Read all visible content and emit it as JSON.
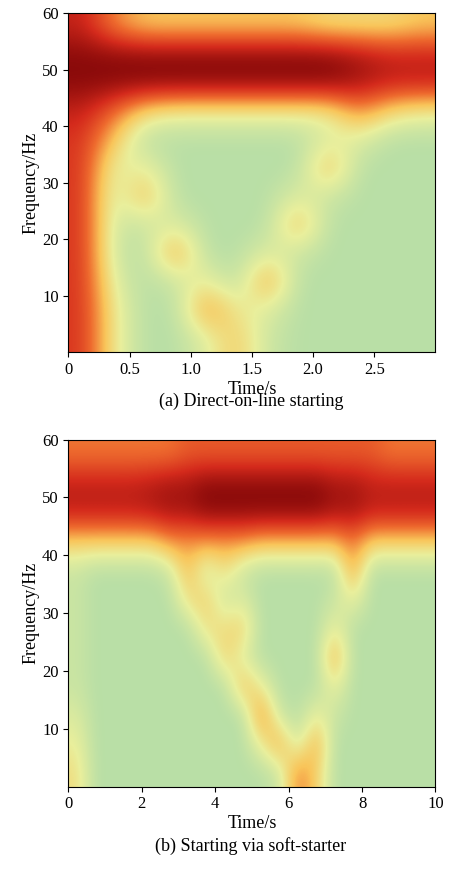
{
  "chart_data": [
    {
      "type": "heatmap",
      "title": "(a) Direct-on-line starting",
      "x_label": "Time/s",
      "y_label": "Frequency/Hz",
      "xlim": [
        0,
        3
      ],
      "ylim": [
        0,
        60
      ],
      "xticks": [
        0,
        0.5,
        {
          "value": 1.0,
          "label": "1.0"
        },
        1.5,
        {
          "value": 2.0,
          "label": "2.0"
        },
        2.5
      ],
      "yticks": [
        10,
        20,
        30,
        40,
        50,
        60
      ],
      "x": [
        0.125,
        0.375,
        0.625,
        0.875,
        1.125,
        1.375,
        1.625,
        1.875,
        2.125,
        2.375,
        2.625,
        2.875
      ],
      "y": [
        2.5,
        7.5,
        12.5,
        17.5,
        22.5,
        27.5,
        32.5,
        37.5,
        42.5,
        47.5,
        52.5,
        57.5
      ],
      "cells": [
        [
          0.85,
          0.5,
          0.35,
          0.35,
          0.45,
          0.6,
          0.4,
          0.35,
          0.35,
          0.35,
          0.35,
          0.35
        ],
        [
          0.85,
          0.5,
          0.35,
          0.35,
          0.7,
          0.5,
          0.45,
          0.35,
          0.35,
          0.35,
          0.35,
          0.35
        ],
        [
          0.85,
          0.45,
          0.35,
          0.4,
          0.5,
          0.35,
          0.7,
          0.35,
          0.35,
          0.35,
          0.35,
          0.35
        ],
        [
          0.85,
          0.4,
          0.35,
          0.7,
          0.35,
          0.35,
          0.45,
          0.4,
          0.35,
          0.35,
          0.35,
          0.35
        ],
        [
          0.85,
          0.4,
          0.4,
          0.45,
          0.35,
          0.35,
          0.35,
          0.65,
          0.35,
          0.35,
          0.35,
          0.35
        ],
        [
          0.85,
          0.4,
          0.65,
          0.35,
          0.35,
          0.35,
          0.35,
          0.45,
          0.4,
          0.35,
          0.35,
          0.35
        ],
        [
          0.85,
          0.45,
          0.5,
          0.35,
          0.35,
          0.35,
          0.35,
          0.35,
          0.65,
          0.35,
          0.35,
          0.35
        ],
        [
          0.85,
          0.6,
          0.35,
          0.35,
          0.35,
          0.35,
          0.35,
          0.35,
          0.45,
          0.45,
          0.35,
          0.35
        ],
        [
          0.9,
          0.75,
          0.55,
          0.5,
          0.5,
          0.5,
          0.5,
          0.5,
          0.5,
          0.7,
          0.55,
          0.5
        ],
        [
          1,
          1,
          1,
          1,
          1,
          1,
          1,
          1,
          1,
          0.95,
          0.9,
          0.9
        ],
        [
          1,
          1,
          1,
          1,
          1,
          1,
          1,
          1,
          1,
          0.95,
          0.9,
          0.9
        ],
        [
          0.9,
          0.7,
          0.6,
          0.6,
          0.6,
          0.6,
          0.6,
          0.6,
          0.55,
          0.55,
          0.55,
          0.6
        ]
      ]
    },
    {
      "type": "heatmap",
      "title": "(b) Starting via soft-starter",
      "x_label": "Time/s",
      "y_label": "Frequency/Hz",
      "xlim": [
        0,
        10
      ],
      "ylim": [
        0,
        60
      ],
      "xticks": [
        0,
        2,
        4,
        6,
        8,
        10
      ],
      "yticks": [
        10,
        20,
        30,
        40,
        50,
        60
      ],
      "x": [
        0.25,
        0.75,
        1.25,
        1.75,
        2.25,
        2.75,
        3.25,
        3.75,
        4.25,
        4.75,
        5.25,
        5.75,
        6.25,
        6.75,
        7.25,
        7.75,
        8.25,
        8.75,
        9.25,
        9.75
      ],
      "y": [
        2.5,
        7.5,
        12.5,
        17.5,
        22.5,
        27.5,
        32.5,
        37.5,
        42.5,
        47.5,
        52.5,
        57.5
      ],
      "cells": [
        [
          0.5,
          0.3,
          0.3,
          0.3,
          0.3,
          0.3,
          0.3,
          0.3,
          0.3,
          0.3,
          0.3,
          0.35,
          0.7,
          0.55,
          0.3,
          0.3,
          0.3,
          0.3,
          0.3,
          0.3
        ],
        [
          0.45,
          0.3,
          0.3,
          0.3,
          0.3,
          0.3,
          0.3,
          0.3,
          0.3,
          0.3,
          0.45,
          0.65,
          0.35,
          0.65,
          0.3,
          0.3,
          0.3,
          0.3,
          0.3,
          0.3
        ],
        [
          0.4,
          0.3,
          0.3,
          0.3,
          0.3,
          0.3,
          0.3,
          0.3,
          0.3,
          0.3,
          0.7,
          0.35,
          0.3,
          0.45,
          0.35,
          0.3,
          0.3,
          0.3,
          0.3,
          0.3
        ],
        [
          0.35,
          0.3,
          0.3,
          0.3,
          0.3,
          0.3,
          0.3,
          0.3,
          0.3,
          0.6,
          0.45,
          0.3,
          0.3,
          0.3,
          0.45,
          0.3,
          0.3,
          0.3,
          0.3,
          0.3
        ],
        [
          0.35,
          0.3,
          0.3,
          0.3,
          0.3,
          0.3,
          0.3,
          0.3,
          0.55,
          0.4,
          0.3,
          0.3,
          0.3,
          0.3,
          0.65,
          0.3,
          0.3,
          0.3,
          0.3,
          0.3
        ],
        [
          0.35,
          0.3,
          0.3,
          0.3,
          0.3,
          0.3,
          0.3,
          0.5,
          0.5,
          0.55,
          0.3,
          0.3,
          0.3,
          0.3,
          0.45,
          0.3,
          0.3,
          0.3,
          0.3,
          0.3
        ],
        [
          0.35,
          0.3,
          0.3,
          0.3,
          0.3,
          0.3,
          0.5,
          0.55,
          0.35,
          0.4,
          0.3,
          0.3,
          0.3,
          0.3,
          0.35,
          0.45,
          0.3,
          0.3,
          0.3,
          0.3
        ],
        [
          0.35,
          0.3,
          0.3,
          0.3,
          0.3,
          0.35,
          0.6,
          0.35,
          0.5,
          0.35,
          0.3,
          0.3,
          0.3,
          0.3,
          0.3,
          0.65,
          0.3,
          0.3,
          0.3,
          0.3
        ],
        [
          0.55,
          0.55,
          0.55,
          0.55,
          0.55,
          0.65,
          0.65,
          0.65,
          0.65,
          0.65,
          0.6,
          0.6,
          0.6,
          0.6,
          0.6,
          0.7,
          0.55,
          0.55,
          0.55,
          0.55
        ],
        [
          0.9,
          0.9,
          0.9,
          0.9,
          0.92,
          0.95,
          0.95,
          1,
          1,
          1,
          1,
          1,
          1,
          1,
          0.95,
          0.95,
          0.9,
          0.9,
          0.9,
          0.9
        ],
        [
          0.9,
          0.9,
          0.9,
          0.9,
          0.92,
          0.95,
          0.95,
          1,
          1,
          1,
          1,
          1,
          1,
          1,
          0.95,
          0.95,
          0.9,
          0.9,
          0.9,
          0.9
        ],
        [
          0.7,
          0.7,
          0.7,
          0.7,
          0.7,
          0.7,
          0.75,
          0.75,
          0.75,
          0.75,
          0.75,
          0.75,
          0.75,
          0.75,
          0.75,
          0.75,
          0.75,
          0.7,
          0.7,
          0.7
        ]
      ]
    }
  ]
}
